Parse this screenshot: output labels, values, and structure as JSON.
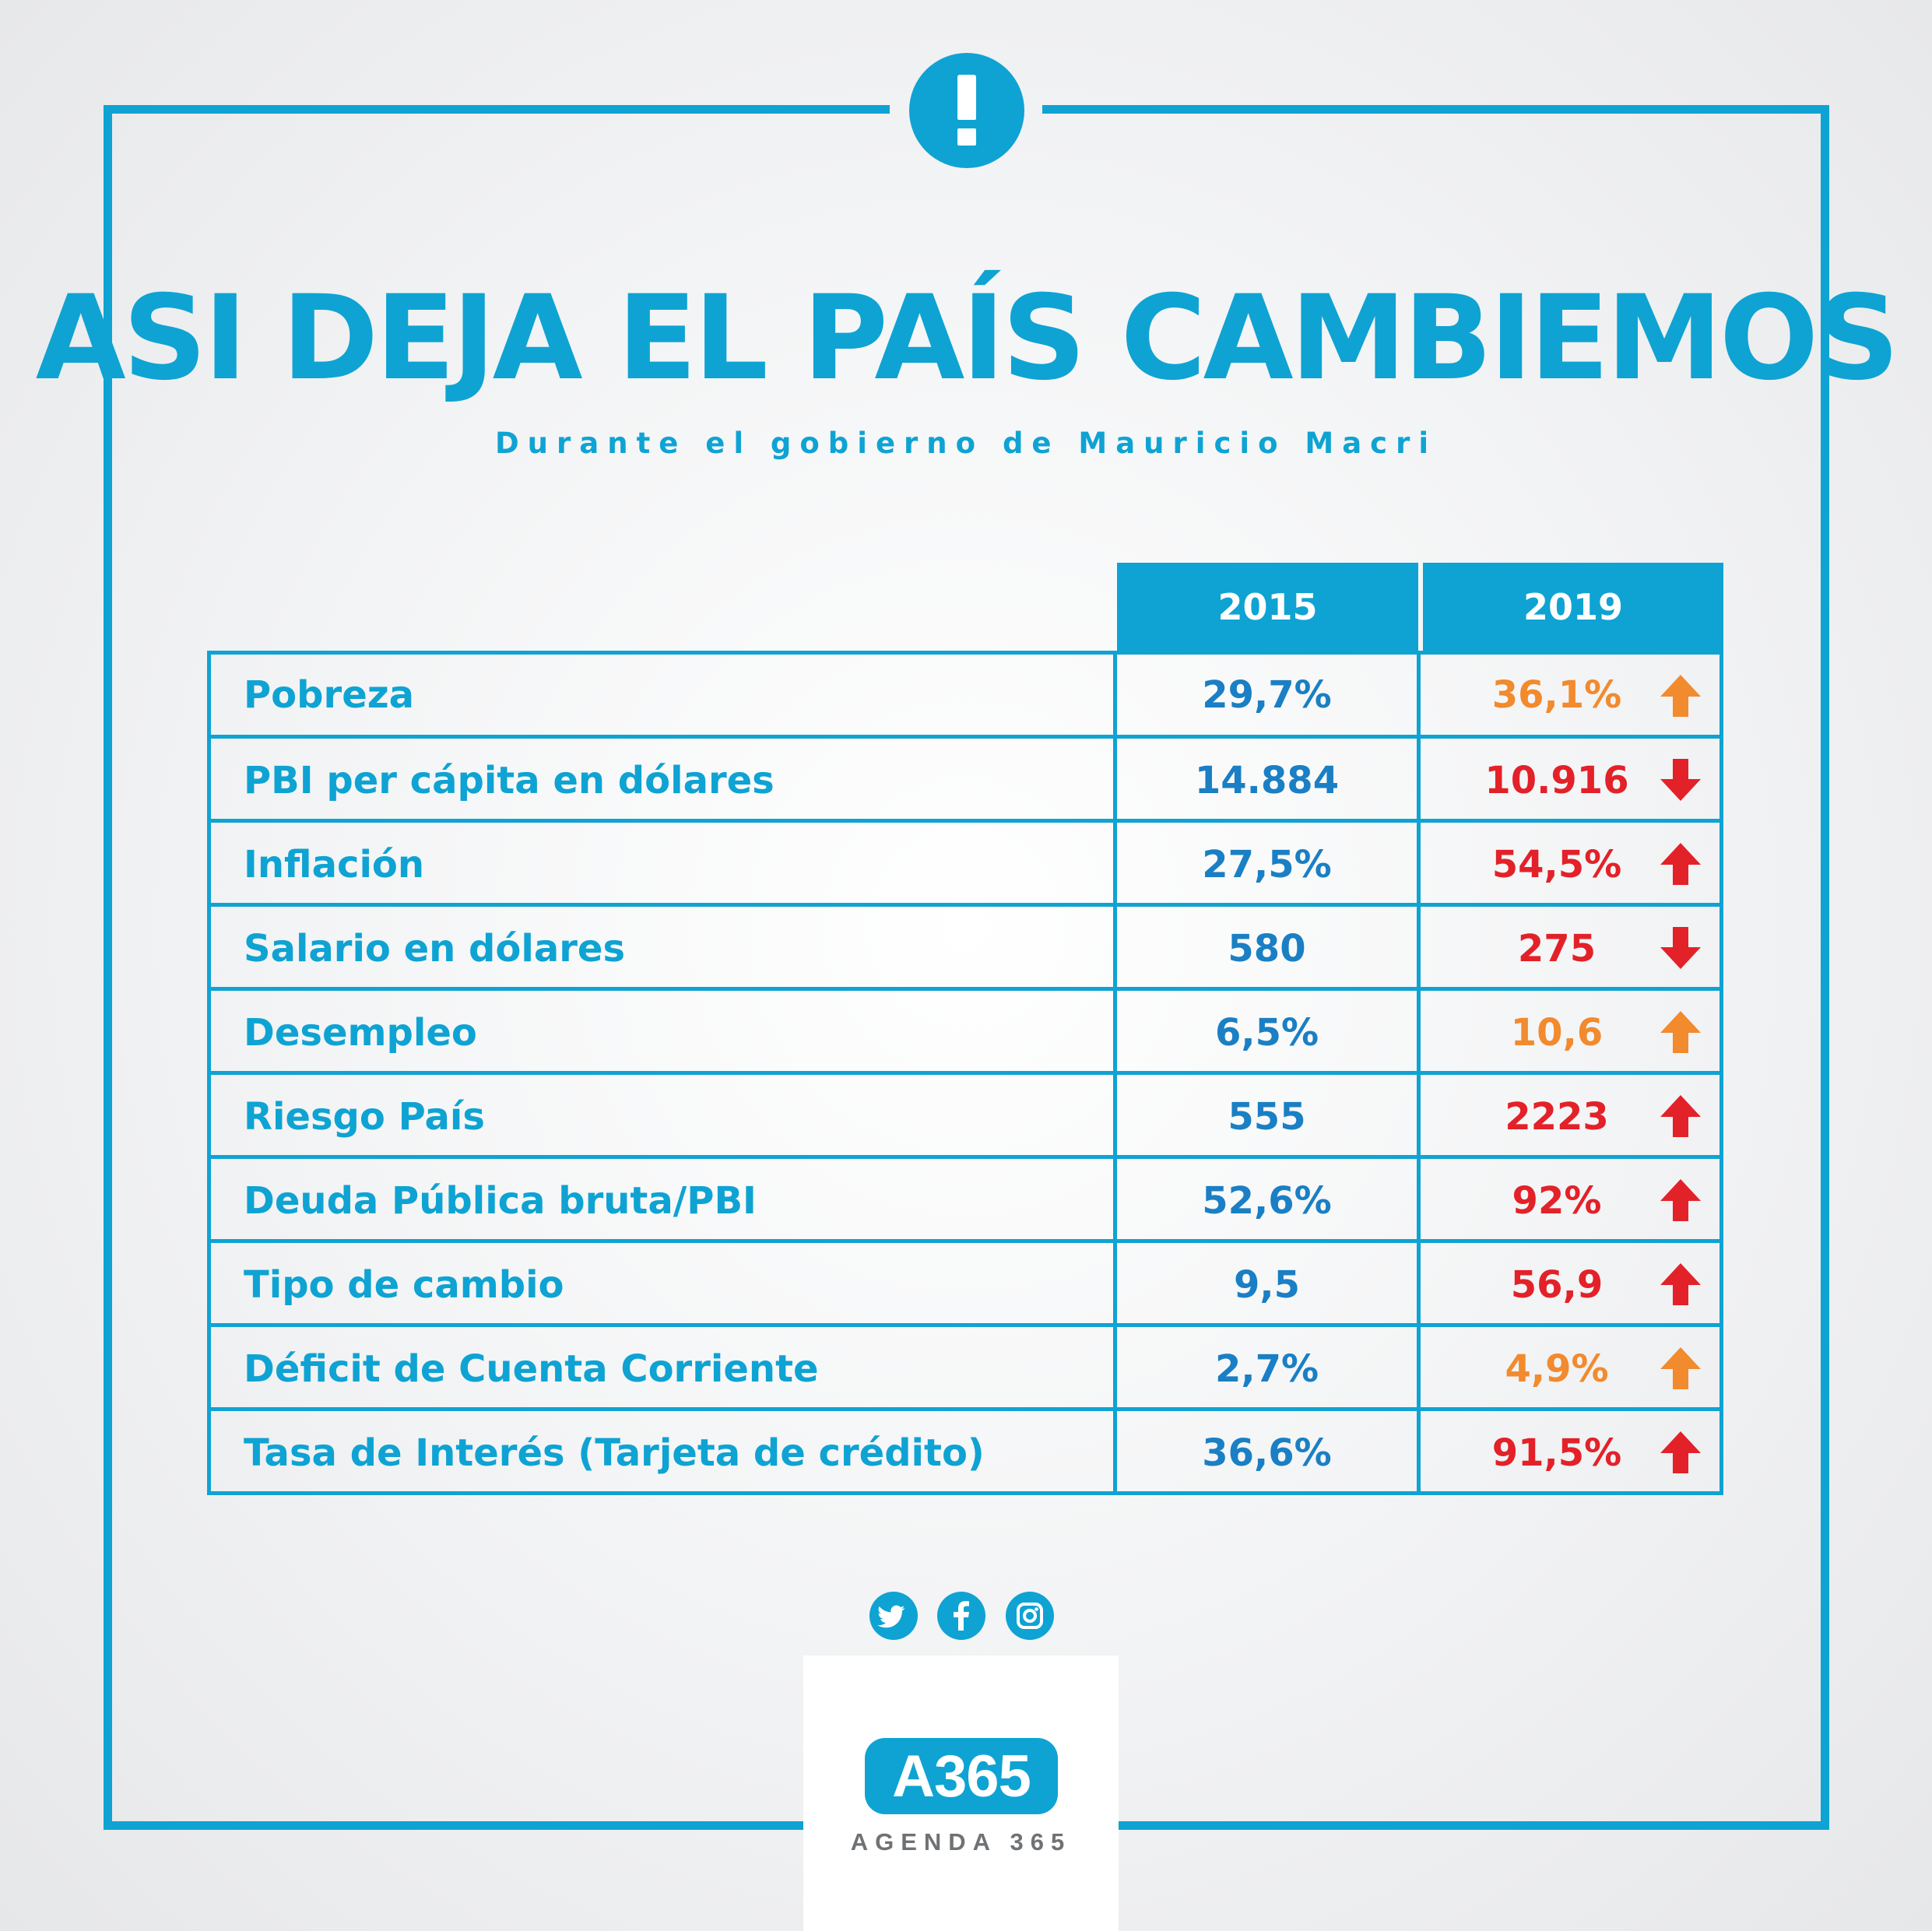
{
  "header": {
    "title": "ASI DEJA EL PAÍS CAMBIEMOS",
    "subtitle": "Durante el gobierno de Mauricio Macri",
    "alert_icon": "exclamation-icon"
  },
  "colors": {
    "brand": "#0ea3d3",
    "value_2015": "#1a7fc4",
    "orange": "#f28a2e",
    "red": "#e32129"
  },
  "table": {
    "columns": [
      "2015",
      "2019"
    ],
    "rows": [
      {
        "label": "Pobreza",
        "v2015": "29,7%",
        "v2019": "36,1%",
        "color": "orange",
        "arrow": "up"
      },
      {
        "label": "PBI per cápita en dólares",
        "v2015": "14.884",
        "v2019": "10.916",
        "color": "red",
        "arrow": "down"
      },
      {
        "label": "Inflación",
        "v2015": "27,5%",
        "v2019": "54,5%",
        "color": "red",
        "arrow": "up"
      },
      {
        "label": "Salario en dólares",
        "v2015": "580",
        "v2019": "275",
        "color": "red",
        "arrow": "down"
      },
      {
        "label": "Desempleo",
        "v2015": "6,5%",
        "v2019": "10,6",
        "color": "orange",
        "arrow": "up"
      },
      {
        "label": "Riesgo País",
        "v2015": "555",
        "v2019": "2223",
        "color": "red",
        "arrow": "up"
      },
      {
        "label": "Deuda Pública bruta/PBI",
        "v2015": "52,6%",
        "v2019": "92%",
        "color": "red",
        "arrow": "up"
      },
      {
        "label": "Tipo de cambio",
        "v2015": "9,5",
        "v2019": "56,9",
        "color": "red",
        "arrow": "up"
      },
      {
        "label": "Déficit de Cuenta Corriente",
        "v2015": "2,7%",
        "v2019": "4,9%",
        "color": "orange",
        "arrow": "up"
      },
      {
        "label": "Tasa de Interés (Tarjeta de crédito)",
        "v2015": "36,6%",
        "v2019": "91,5%",
        "color": "red",
        "arrow": "up"
      }
    ]
  },
  "social": [
    "twitter-icon",
    "facebook-icon",
    "instagram-icon"
  ],
  "logo": {
    "mark": "A365",
    "name": "AGENDA 365"
  }
}
